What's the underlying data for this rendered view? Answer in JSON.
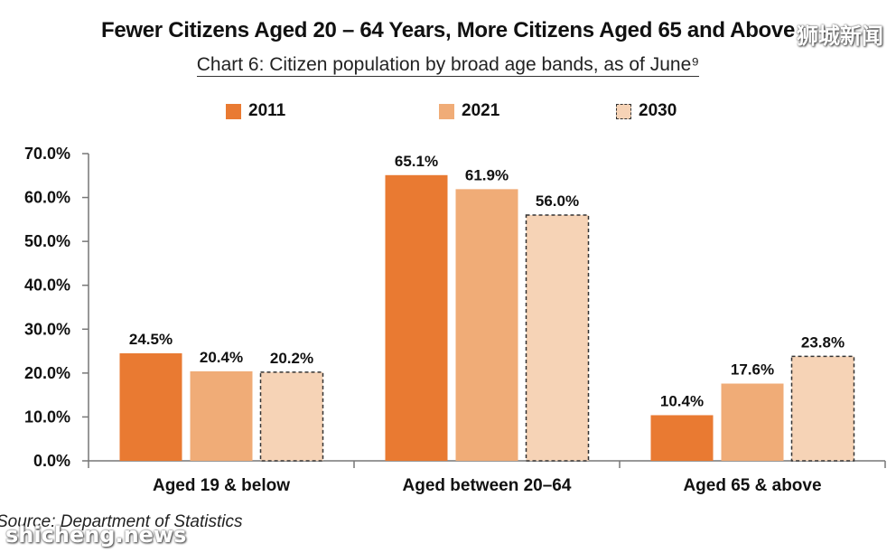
{
  "title": "Fewer Citizens Aged 20 – 64 Years, More Citizens Aged 65 and Above",
  "subtitle": "Chart 6: Citizen population by broad age bands, as of June⁹",
  "source": "Source: Department of Statistics",
  "watermark_top": "狮城新闻",
  "watermark_bottom": "shicheng.news",
  "chart_data": {
    "type": "bar",
    "categories": [
      "Aged 19 & below",
      "Aged between 20–64",
      "Aged 65 & above"
    ],
    "series": [
      {
        "name": "2011",
        "values": [
          24.5,
          65.1,
          10.4
        ],
        "color": "#E97A32",
        "dashed": false
      },
      {
        "name": "2021",
        "values": [
          20.4,
          61.9,
          17.6
        ],
        "color": "#F0AC77",
        "dashed": false
      },
      {
        "name": "2030",
        "values": [
          20.2,
          56.0,
          23.8
        ],
        "color": "#F6D3B6",
        "dashed": true
      }
    ],
    "yticks": [
      "0.0%",
      "10.0%",
      "20.0%",
      "30.0%",
      "40.0%",
      "50.0%",
      "60.0%",
      "70.0%"
    ],
    "ylim": [
      0,
      70
    ],
    "value_suffix": "%",
    "grid": false,
    "legend_position": "top"
  }
}
